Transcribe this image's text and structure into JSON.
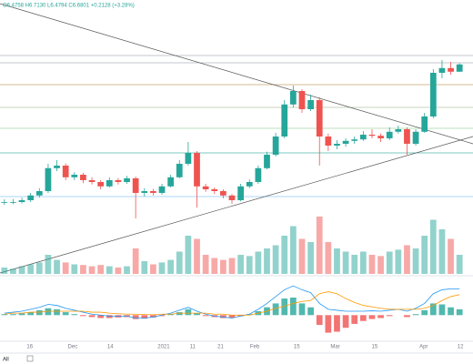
{
  "chart_data": {
    "type": "candlestick",
    "ohlc_header": "O6.4758 H6.7130 L6.4794 C6.6801 +0.2128 (+3.28%)",
    "range_button": "All",
    "xlim": [
      -0.5,
      52.5
    ],
    "ylim": [
      1.2,
      8.2
    ],
    "xticks": [
      {
        "value": 2.9,
        "label": "16"
      },
      {
        "value": 7.8,
        "label": "Dec"
      },
      {
        "value": 12.1,
        "label": "14"
      },
      {
        "value": 18.2,
        "label": "2021"
      },
      {
        "value": 21.5,
        "label": "11"
      },
      {
        "value": 24.7,
        "label": "21"
      },
      {
        "value": 28.6,
        "label": "Feb"
      },
      {
        "value": 33.4,
        "label": "15"
      },
      {
        "value": 37.8,
        "label": "Mar"
      },
      {
        "value": 42.3,
        "label": "15"
      },
      {
        "value": 47.9,
        "label": "Apr"
      },
      {
        "value": 52.1,
        "label": "12"
      }
    ],
    "up_color": "#26a69a",
    "down_color": "#ef5350",
    "levels": [
      {
        "value": 6.925,
        "color": "#b2b5be"
      },
      {
        "value": 6.725,
        "color": "#b2b5be"
      },
      {
        "value": 6.125,
        "color": "#c9a26b"
      },
      {
        "value": 5.5,
        "color": "#b7c7a8"
      },
      {
        "value": 4.925,
        "color": "#a5d6a7"
      },
      {
        "value": 4.25,
        "color": "#4db6ac"
      },
      {
        "value": 3.05,
        "color": "#90caf9"
      }
    ],
    "candles": [
      [
        2.88,
        2.98,
        2.82,
        2.9
      ],
      [
        2.9,
        2.98,
        2.84,
        2.9
      ],
      [
        2.9,
        3.02,
        2.86,
        2.95
      ],
      [
        2.95,
        3.15,
        2.9,
        3.08
      ],
      [
        3.08,
        3.28,
        3.02,
        3.2
      ],
      [
        3.2,
        3.95,
        3.15,
        3.83
      ],
      [
        3.83,
        4.05,
        3.75,
        3.9
      ],
      [
        3.9,
        3.96,
        3.5,
        3.58
      ],
      [
        3.58,
        3.72,
        3.5,
        3.65
      ],
      [
        3.65,
        3.7,
        3.42,
        3.5
      ],
      [
        3.5,
        3.58,
        3.38,
        3.45
      ],
      [
        3.45,
        3.5,
        3.25,
        3.33
      ],
      [
        3.33,
        3.58,
        3.3,
        3.5
      ],
      [
        3.5,
        3.56,
        3.38,
        3.45
      ],
      [
        3.45,
        3.62,
        3.4,
        3.55
      ],
      [
        3.55,
        3.6,
        2.45,
        3.15
      ],
      [
        3.15,
        3.28,
        3.05,
        3.2
      ],
      [
        3.2,
        3.26,
        3.08,
        3.15
      ],
      [
        3.15,
        3.4,
        3.1,
        3.33
      ],
      [
        3.33,
        3.65,
        3.3,
        3.58
      ],
      [
        3.58,
        4.05,
        3.55,
        3.95
      ],
      [
        3.95,
        4.55,
        3.9,
        4.25
      ],
      [
        4.25,
        4.3,
        2.75,
        3.33
      ],
      [
        3.33,
        3.4,
        3.18,
        3.25
      ],
      [
        3.25,
        3.3,
        3.12,
        3.2
      ],
      [
        3.2,
        3.25,
        3.0,
        3.08
      ],
      [
        3.08,
        3.12,
        2.85,
        2.95
      ],
      [
        2.95,
        3.4,
        2.92,
        3.33
      ],
      [
        3.33,
        3.52,
        3.28,
        3.45
      ],
      [
        3.45,
        3.9,
        3.4,
        3.83
      ],
      [
        3.83,
        4.28,
        3.8,
        4.2
      ],
      [
        4.2,
        4.8,
        4.15,
        4.7
      ],
      [
        4.7,
        5.7,
        4.65,
        5.58
      ],
      [
        5.58,
        6.1,
        5.5,
        5.95
      ],
      [
        5.95,
        6.0,
        5.35,
        5.45
      ],
      [
        5.45,
        5.85,
        5.4,
        5.7
      ],
      [
        5.7,
        5.78,
        3.9,
        4.7
      ],
      [
        4.7,
        4.78,
        4.3,
        4.45
      ],
      [
        4.45,
        4.6,
        4.35,
        4.5
      ],
      [
        4.5,
        4.65,
        4.42,
        4.58
      ],
      [
        4.58,
        4.7,
        4.5,
        4.62
      ],
      [
        4.62,
        4.85,
        4.58,
        4.75
      ],
      [
        4.75,
        4.9,
        4.65,
        4.72
      ],
      [
        4.72,
        4.78,
        4.55,
        4.65
      ],
      [
        4.65,
        4.95,
        4.6,
        4.83
      ],
      [
        4.83,
        5.0,
        4.78,
        4.9
      ],
      [
        4.9,
        4.95,
        4.2,
        4.5
      ],
      [
        4.5,
        4.9,
        4.45,
        4.83
      ],
      [
        4.83,
        5.35,
        4.8,
        5.25
      ],
      [
        5.25,
        6.55,
        5.2,
        6.45
      ],
      [
        6.45,
        6.8,
        6.3,
        6.58
      ],
      [
        6.58,
        6.75,
        6.4,
        6.48
      ],
      [
        6.48,
        6.71,
        6.48,
        6.68
      ]
    ],
    "volume_lim": [
      0,
      100
    ],
    "volume": [
      10,
      8,
      12,
      15,
      18,
      30,
      22,
      18,
      15,
      14,
      12,
      14,
      12,
      10,
      12,
      40,
      20,
      15,
      18,
      22,
      35,
      60,
      55,
      30,
      25,
      22,
      25,
      30,
      28,
      35,
      40,
      45,
      60,
      75,
      55,
      50,
      90,
      50,
      40,
      35,
      30,
      35,
      30,
      28,
      35,
      38,
      45,
      40,
      60,
      85,
      70,
      55,
      30
    ],
    "macd_lim": [
      -1.2,
      1.6
    ],
    "macd_hist": [
      0.05,
      0.05,
      0.1,
      0.15,
      0.25,
      0.35,
      0.3,
      0.15,
      0.05,
      -0.05,
      -0.1,
      -0.15,
      -0.15,
      -0.12,
      -0.1,
      -0.2,
      -0.18,
      -0.12,
      -0.05,
      0.05,
      0.15,
      0.3,
      0.1,
      -0.05,
      -0.1,
      -0.15,
      -0.15,
      -0.05,
      0.05,
      0.2,
      0.4,
      0.6,
      0.85,
      0.9,
      0.6,
      0.4,
      -0.5,
      -0.9,
      -0.85,
      -0.65,
      -0.45,
      -0.3,
      -0.2,
      -0.15,
      -0.05,
      0,
      -0.1,
      0.05,
      0.25,
      0.6,
      0.55,
      0.4,
      0.3
    ],
    "macd": {
      "color": "#2196f3",
      "values": [
        0.1,
        0.15,
        0.2,
        0.3,
        0.4,
        0.55,
        0.5,
        0.35,
        0.25,
        0.15,
        0.05,
        0,
        -0.05,
        -0.05,
        -0.05,
        -0.15,
        -0.15,
        -0.1,
        0,
        0.1,
        0.25,
        0.4,
        0.2,
        0.05,
        -0.05,
        -0.1,
        -0.15,
        -0.05,
        0.05,
        0.3,
        0.6,
        0.95,
        1.3,
        1.5,
        1.3,
        1.15,
        0.6,
        0.3,
        0.25,
        0.2,
        0.2,
        0.2,
        0.22,
        0.2,
        0.25,
        0.3,
        0.2,
        0.35,
        0.6,
        1.1,
        1.3,
        1.35,
        1.35
      ]
    },
    "signal": {
      "color": "#ff9800",
      "values": [
        0.05,
        0.1,
        0.1,
        0.15,
        0.15,
        0.2,
        0.2,
        0.2,
        0.2,
        0.2,
        0.15,
        0.15,
        0.1,
        0.07,
        0.05,
        0.05,
        0.03,
        0.02,
        0.05,
        0.05,
        0.1,
        0.1,
        0.1,
        0.1,
        0.05,
        0.05,
        0,
        0,
        0,
        0.1,
        0.2,
        0.35,
        0.45,
        0.6,
        0.7,
        0.75,
        1.1,
        1.2,
        1.1,
        0.85,
        0.65,
        0.5,
        0.42,
        0.35,
        0.3,
        0.3,
        0.3,
        0.3,
        0.35,
        0.5,
        0.75,
        0.95,
        1.05
      ]
    }
  }
}
